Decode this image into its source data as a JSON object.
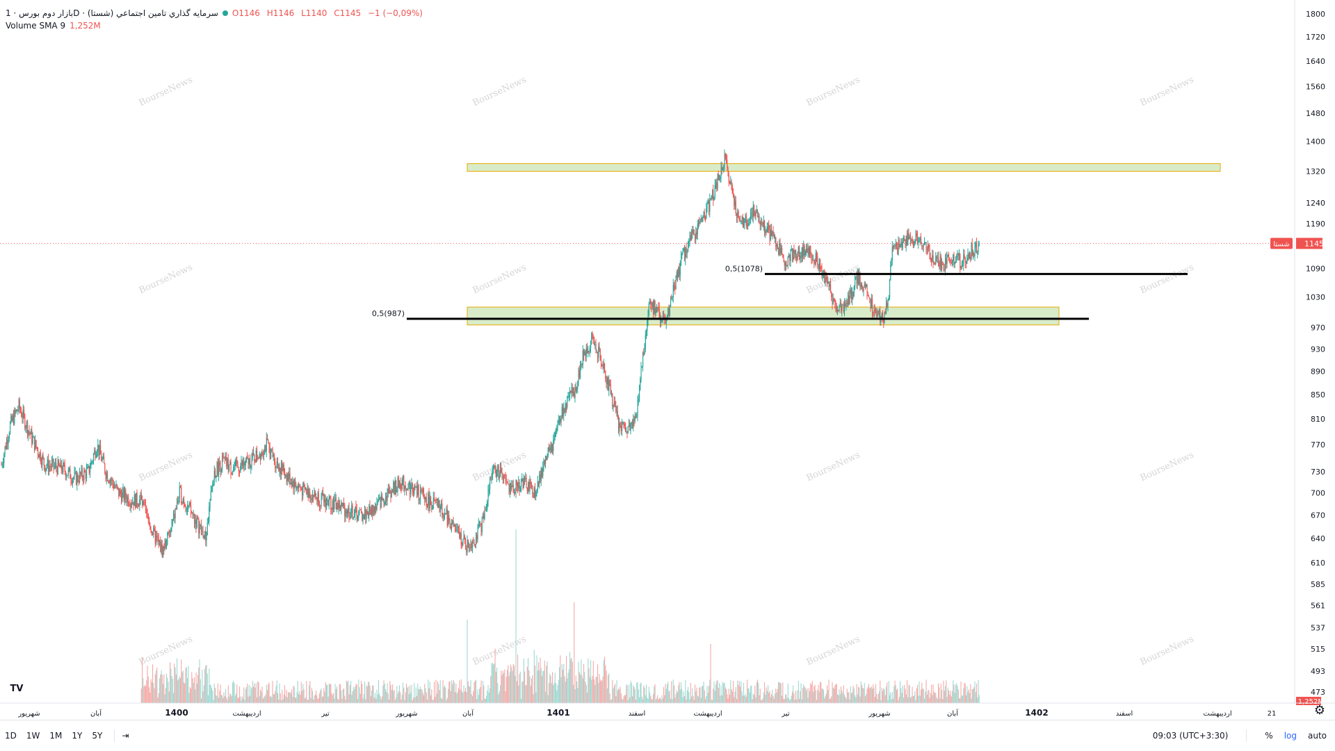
{
  "legend": {
    "symbol_title": "بازار دوم بورس · 1D · سرمایه گذاري تامين اجتماعي (شستا)",
    "ohlc": {
      "o": "O1146",
      "h": "H1146",
      "l": "L1140",
      "c": "C1145",
      "chg": "−1 (−0,09%)"
    },
    "volume_label": "Volume SMA 9",
    "volume_value": "1,252M"
  },
  "price_tag": {
    "label": "شستا",
    "value": "1145"
  },
  "volume_tag": "1,252M",
  "watermark": "BourseNews",
  "colors": {
    "up": "#26a69a",
    "down": "#ef5350",
    "zone_fill": "#d9ecc9",
    "zone_border": "#e6a800"
  },
  "bottom_bar": {
    "timeframes": [
      "1D",
      "1W",
      "1M",
      "1Y",
      "5Y"
    ],
    "clock": "09:03 (UTC+3:30)",
    "percent": "%",
    "log": "log",
    "auto": "auto"
  },
  "chart_data": {
    "type": "candlestick",
    "y_axis_ticks": [
      1800,
      1720,
      1640,
      1560,
      1480,
      1400,
      1320,
      1240,
      1190,
      1145,
      1090,
      1030,
      970,
      930,
      890,
      850,
      810,
      770,
      730,
      700,
      670,
      640,
      610,
      585,
      561,
      537,
      515,
      493,
      473
    ],
    "y_axis_scale": "log",
    "x_axis_ticks": [
      "شهریور",
      "آبان",
      "1400",
      "اردیبهشت",
      "تیر",
      "شهریور",
      "آبان",
      "1401",
      "اسفند",
      "اردیبهشت",
      "تیر",
      "شهریور",
      "آبان",
      "1402",
      "اسفند",
      "اردیبهشت",
      "21"
    ],
    "close_path": [
      [
        0,
        740
      ],
      [
        10,
        800
      ],
      [
        20,
        830
      ],
      [
        35,
        780
      ],
      [
        50,
        740
      ],
      [
        70,
        735
      ],
      [
        85,
        720
      ],
      [
        100,
        730
      ],
      [
        110,
        770
      ],
      [
        120,
        730
      ],
      [
        135,
        700
      ],
      [
        150,
        690
      ],
      [
        160,
        690
      ],
      [
        175,
        645
      ],
      [
        185,
        625
      ],
      [
        195,
        650
      ],
      [
        205,
        700
      ],
      [
        215,
        680
      ],
      [
        225,
        660
      ],
      [
        235,
        640
      ],
      [
        245,
        730
      ],
      [
        255,
        745
      ],
      [
        265,
        735
      ],
      [
        280,
        740
      ],
      [
        295,
        755
      ],
      [
        305,
        770
      ],
      [
        315,
        745
      ],
      [
        325,
        730
      ],
      [
        335,
        715
      ],
      [
        345,
        705
      ],
      [
        355,
        700
      ],
      [
        370,
        690
      ],
      [
        385,
        685
      ],
      [
        400,
        675
      ],
      [
        415,
        670
      ],
      [
        430,
        680
      ],
      [
        445,
        700
      ],
      [
        460,
        715
      ],
      [
        475,
        705
      ],
      [
        490,
        690
      ],
      [
        505,
        680
      ],
      [
        520,
        655
      ],
      [
        535,
        630
      ],
      [
        545,
        640
      ],
      [
        555,
        665
      ],
      [
        565,
        735
      ],
      [
        575,
        725
      ],
      [
        585,
        705
      ],
      [
        600,
        715
      ],
      [
        615,
        700
      ],
      [
        625,
        745
      ],
      [
        635,
        770
      ],
      [
        645,
        820
      ],
      [
        660,
        860
      ],
      [
        670,
        920
      ],
      [
        680,
        950
      ],
      [
        690,
        910
      ],
      [
        700,
        860
      ],
      [
        710,
        800
      ],
      [
        720,
        790
      ],
      [
        730,
        810
      ],
      [
        735,
        880
      ],
      [
        740,
        940
      ],
      [
        745,
        1020
      ],
      [
        755,
        1000
      ],
      [
        765,
        975
      ],
      [
        775,
        1060
      ],
      [
        785,
        1120
      ],
      [
        800,
        1180
      ],
      [
        815,
        1240
      ],
      [
        825,
        1300
      ],
      [
        832,
        1350
      ],
      [
        840,
        1280
      ],
      [
        848,
        1200
      ],
      [
        855,
        1190
      ],
      [
        865,
        1220
      ],
      [
        880,
        1180
      ],
      [
        890,
        1150
      ],
      [
        900,
        1110
      ],
      [
        915,
        1120
      ],
      [
        930,
        1130
      ],
      [
        940,
        1100
      ],
      [
        950,
        1060
      ],
      [
        960,
        1010
      ],
      [
        975,
        1020
      ],
      [
        985,
        1070
      ],
      [
        995,
        1040
      ],
      [
        1005,
        1000
      ],
      [
        1015,
        990
      ],
      [
        1020,
        1020
      ],
      [
        1025,
        1130
      ],
      [
        1035,
        1140
      ],
      [
        1045,
        1160
      ],
      [
        1055,
        1150
      ],
      [
        1065,
        1130
      ],
      [
        1075,
        1110
      ],
      [
        1085,
        1100
      ],
      [
        1095,
        1115
      ],
      [
        1105,
        1100
      ],
      [
        1115,
        1125
      ],
      [
        1125,
        1145
      ]
    ],
    "annotations": [
      {
        "type": "zone",
        "from": 1320,
        "to": 1340
      },
      {
        "type": "zone",
        "from": 975,
        "to": 1010
      },
      {
        "type": "hline",
        "value": 987,
        "label": "0,5(987)"
      },
      {
        "type": "hline",
        "value": 1078,
        "label": "0,5(1078)"
      },
      {
        "type": "hline",
        "value": 1145,
        "style": "dotted-last-price"
      }
    ]
  }
}
